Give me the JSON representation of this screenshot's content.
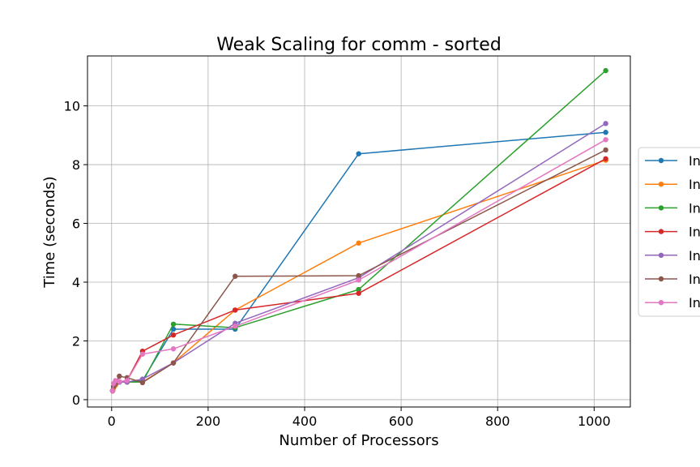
{
  "chart_data": {
    "type": "line",
    "title": "Weak Scaling for comm - sorted",
    "xlabel": "Number of Processors",
    "ylabel": "Time (seconds)",
    "xlim": [
      -50,
      1075
    ],
    "ylim": [
      -0.25,
      11.7
    ],
    "xticks": [
      0,
      200,
      400,
      600,
      800,
      1000
    ],
    "yticks": [
      0,
      2,
      4,
      6,
      8,
      10
    ],
    "grid": true,
    "legend_position": "right, outside plot (cropped)",
    "x": [
      2,
      4,
      8,
      16,
      32,
      64,
      128,
      256,
      512,
      1024
    ],
    "series": [
      {
        "name": "In",
        "color": "#1f77b4",
        "values": [
          0.3,
          0.4,
          0.5,
          0.6,
          0.6,
          0.65,
          2.4,
          2.4,
          8.37,
          9.1
        ]
      },
      {
        "name": "In",
        "color": "#ff7f0e",
        "values": [
          0.3,
          0.4,
          0.5,
          0.6,
          0.6,
          0.6,
          1.25,
          3.05,
          5.33,
          8.15
        ]
      },
      {
        "name": "In",
        "color": "#2ca02c",
        "values": [
          0.3,
          0.45,
          0.55,
          0.6,
          0.6,
          0.6,
          2.57,
          2.45,
          3.75,
          11.2
        ]
      },
      {
        "name": "In",
        "color": "#d62728",
        "values": [
          0.3,
          0.45,
          0.55,
          0.6,
          0.65,
          1.65,
          2.2,
          3.05,
          3.62,
          8.2
        ]
      },
      {
        "name": "In",
        "color": "#9467bd",
        "values": [
          0.3,
          0.45,
          0.55,
          0.6,
          0.6,
          0.7,
          1.25,
          2.6,
          4.15,
          9.4
        ]
      },
      {
        "name": "In",
        "color": "#8c564b",
        "values": [
          0.3,
          0.45,
          0.55,
          0.8,
          0.75,
          0.58,
          1.25,
          4.2,
          4.22,
          8.5
        ]
      },
      {
        "name": "In",
        "color": "#e377c2",
        "values": [
          0.3,
          0.55,
          0.65,
          0.62,
          0.65,
          1.55,
          1.73,
          2.5,
          4.07,
          8.85
        ]
      }
    ]
  }
}
